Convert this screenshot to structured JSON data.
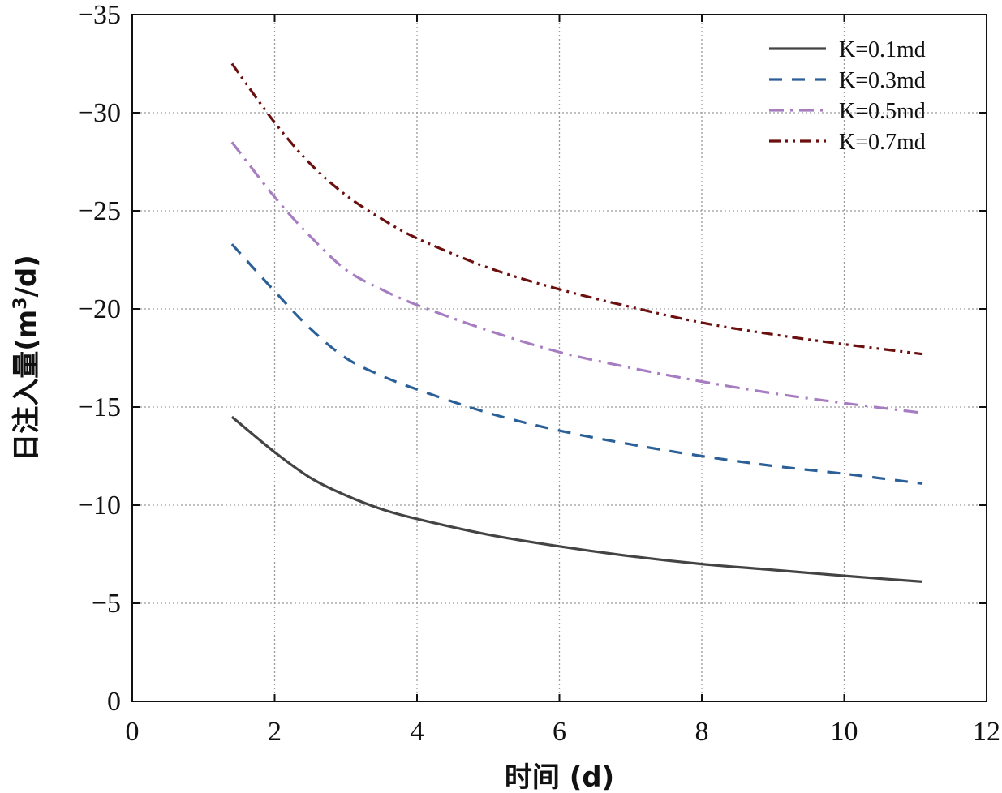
{
  "chart_data": {
    "type": "line",
    "title": "",
    "xlabel": "时间 (d)",
    "ylabel_prefix": "日注入量(m",
    "ylabel_sup": "3",
    "ylabel_suffix": "/d)",
    "xlim": [
      0,
      12
    ],
    "ylim": [
      0,
      -35
    ],
    "xticks": [
      0,
      2,
      4,
      6,
      8,
      10,
      12
    ],
    "yticks": [
      0,
      -5,
      -10,
      -15,
      -20,
      -25,
      -30,
      -35
    ],
    "xtick_labels": [
      "0",
      "2",
      "4",
      "6",
      "8",
      "10",
      "12"
    ],
    "ytick_labels": [
      "0",
      "−5",
      "−10",
      "−15",
      "−20",
      "−25",
      "−30",
      "−35"
    ],
    "grid": true,
    "legend_position": "top-right",
    "x": [
      1.4,
      2,
      2.5,
      3,
      3.5,
      4,
      5,
      6,
      7,
      8,
      9,
      10,
      11.1
    ],
    "series": [
      {
        "name": "K=0.1md",
        "color": "#444444",
        "dash": "solid",
        "values": [
          -14.5,
          -12.7,
          -11.4,
          -10.5,
          -9.8,
          -9.3,
          -8.5,
          -7.9,
          -7.4,
          -7.0,
          -6.7,
          -6.4,
          -6.1
        ]
      },
      {
        "name": "K=0.3md",
        "color": "#2a5f97",
        "dash": "dashed",
        "values": [
          -23.3,
          -20.9,
          -19.0,
          -17.5,
          -16.6,
          -15.9,
          -14.7,
          -13.8,
          -13.1,
          -12.5,
          -12.0,
          -11.6,
          -11.1
        ]
      },
      {
        "name": "K=0.5md",
        "color": "#a77dc2",
        "dash": "dashdot",
        "values": [
          -28.5,
          -25.7,
          -23.7,
          -22.0,
          -21.0,
          -20.2,
          -18.9,
          -17.8,
          -17.0,
          -16.3,
          -15.7,
          -15.2,
          -14.7
        ]
      },
      {
        "name": "K=0.7md",
        "color": "#6b0f0f",
        "dash": "dashdotdot",
        "values": [
          -32.5,
          -29.5,
          -27.4,
          -25.8,
          -24.6,
          -23.6,
          -22.1,
          -21.0,
          -20.1,
          -19.3,
          -18.7,
          -18.2,
          -17.7
        ]
      }
    ]
  }
}
